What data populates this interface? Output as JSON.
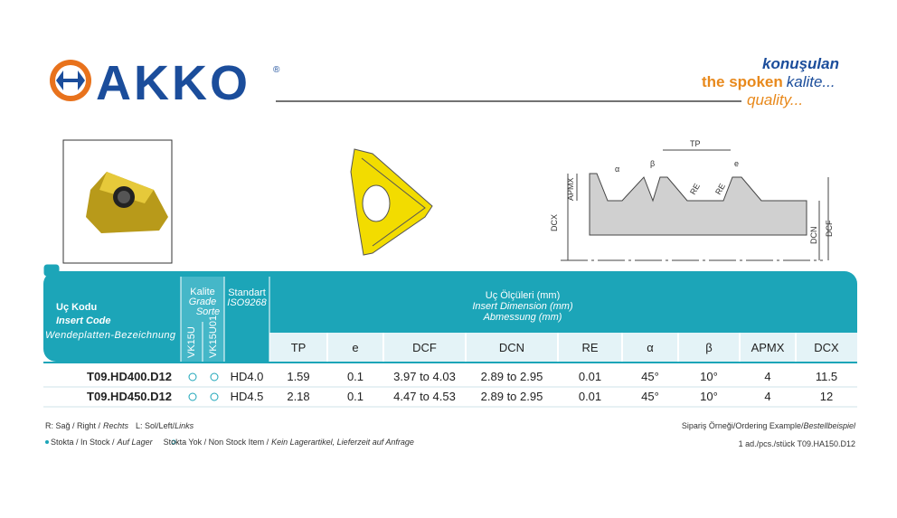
{
  "logo": {
    "brand": "AKKO",
    "registered": "®"
  },
  "slogan": {
    "line1": "konuşulan",
    "line2_a": "the spoken",
    "line2_b": "kalite...",
    "line3": "quality..."
  },
  "diagram": {
    "labels": [
      "TP",
      "α",
      "β",
      "e",
      "RE",
      "RE",
      "APMX",
      "DCX",
      "DCN",
      "DCF"
    ]
  },
  "table": {
    "code_header": [
      "Uç Kodu",
      "Insert Code",
      "Wendeplatten-Bezeichnung"
    ],
    "grade_header": [
      "Kalite",
      "Grade",
      "Sorte"
    ],
    "grades": [
      "VK15U",
      "VK15U01"
    ],
    "standard_header": [
      "Standart",
      "ISO9268"
    ],
    "dimension_header": [
      "Uç Ölçüleri (mm)",
      "Insert Dimension (mm)",
      "Abmessung (mm)"
    ],
    "columns": [
      "TP",
      "e",
      "DCF",
      "DCN",
      "RE",
      "α",
      "β",
      "APMX",
      "DCX"
    ],
    "rows": [
      {
        "code": "T09.HD400.D12",
        "standard": "HD4.0",
        "values": [
          "1.59",
          "0.1",
          "3.97 to 4.03",
          "2.89 to 2.95",
          "0.01",
          "45°",
          "10°",
          "4",
          "11.5"
        ]
      },
      {
        "code": "T09.HD450.D12",
        "standard": "HD4.5",
        "values": [
          "2.18",
          "0.1",
          "4.47 to 4.53",
          "2.89 to 2.95",
          "0.01",
          "45°",
          "10°",
          "4",
          "12"
        ]
      }
    ]
  },
  "footer": {
    "line1": [
      "R: Sağ / Right /",
      "Rechts",
      "L: Sol/Left/",
      "Links"
    ],
    "line2": [
      "Stokta / In Stock /",
      "Auf Lager",
      "Stokta Yok / Non Stock Item /",
      "Kein Lagerartikel, Lieferzeit auf Anfrage"
    ],
    "order_title": [
      "Sipariş Örneği/Ordering Example/",
      "Bestellbeispiel"
    ],
    "order_example": "1 ad./pcs./stück T09.HA150.D12"
  }
}
